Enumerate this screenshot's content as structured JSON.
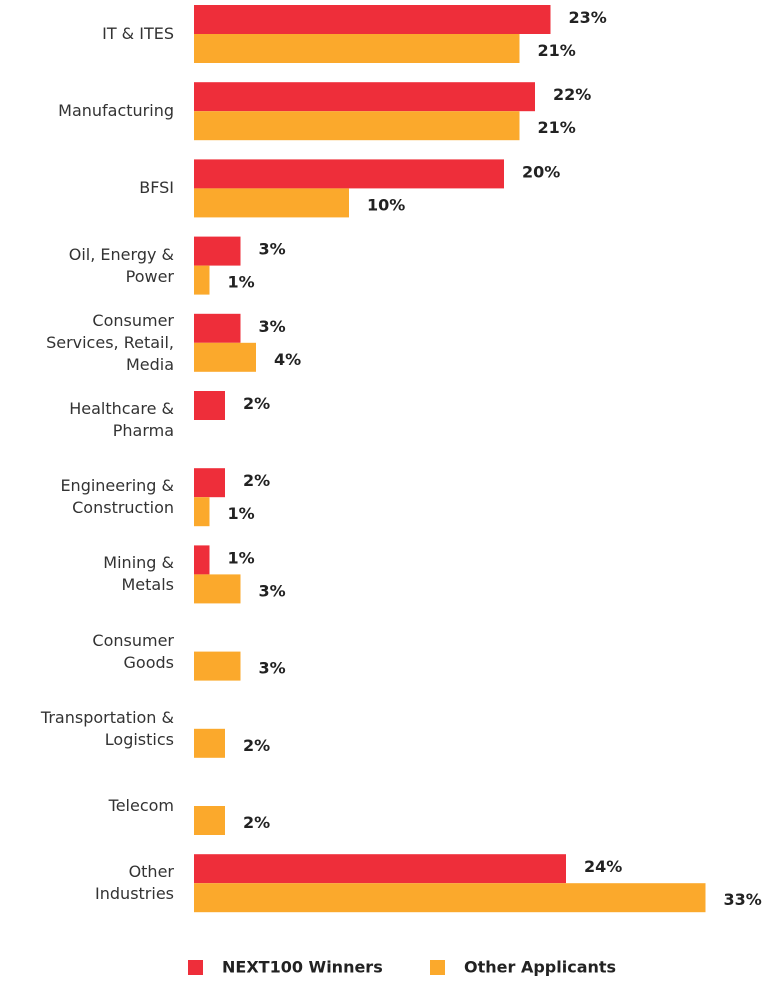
{
  "chart_data": {
    "type": "bar",
    "orientation": "horizontal",
    "categories": [
      "IT & ITES",
      "Manufacturing",
      "BFSI",
      "Oil, Energy &\nPower",
      "Consumer\nServices, Retail,\nMedia",
      "Healthcare &\nPharma",
      "Engineering &\nConstruction",
      "Mining &\nMetals",
      "Consumer\nGoods",
      "Transportation &\nLogistics",
      "Telecom",
      "Other\nIndustries"
    ],
    "series": [
      {
        "name": "NEXT100 Winners",
        "color": "#ee2e3a",
        "values": [
          23,
          22,
          20,
          3,
          3,
          2,
          2,
          1,
          null,
          null,
          null,
          24
        ],
        "value_labels": [
          "23%",
          "22%",
          "20%",
          "3%",
          "3%",
          "2%",
          "2%",
          "1%",
          null,
          null,
          null,
          "24%"
        ]
      },
      {
        "name": "Other Applicants",
        "color": "#fba92c",
        "values": [
          21,
          21,
          10,
          1,
          4,
          null,
          1,
          3,
          3,
          2,
          2,
          33
        ],
        "value_labels": [
          "21%",
          "21%",
          "10%",
          "1%",
          "4%",
          null,
          "1%",
          "3%",
          "3%",
          "2%",
          "2%",
          "33%"
        ]
      }
    ],
    "legend": "bottom"
  }
}
